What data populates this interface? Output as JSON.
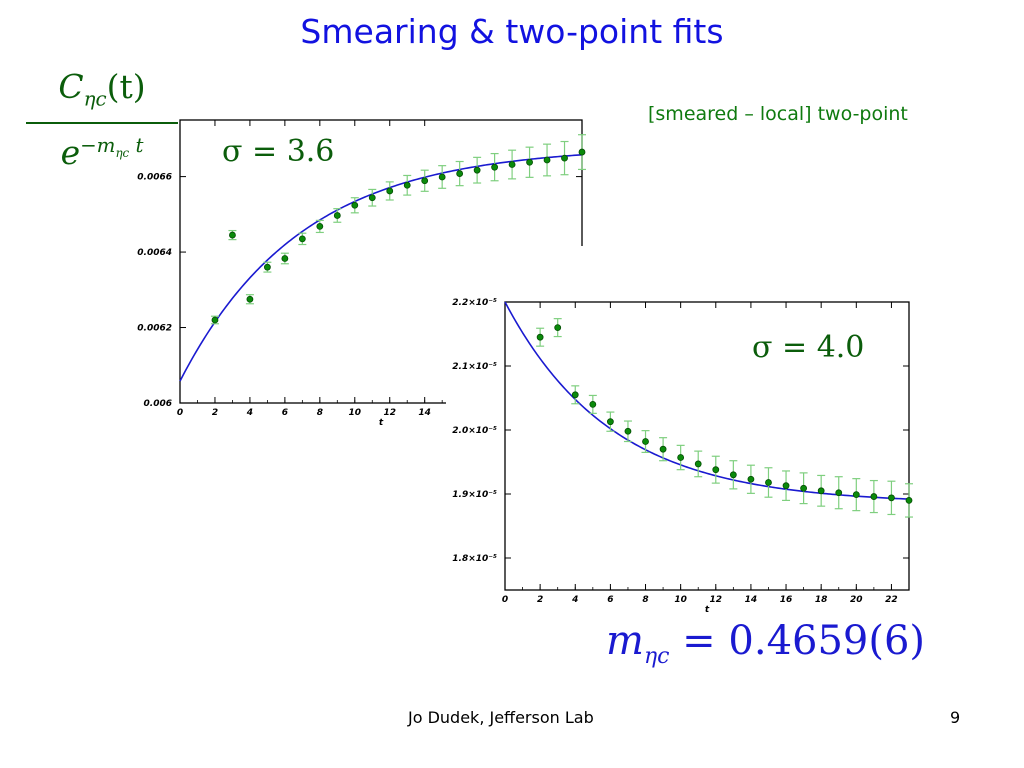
{
  "slide": {
    "title": "Smearing & two-point fits",
    "subtitle": "[smeared – local] two-point",
    "ratio_numerator": "C",
    "ratio_numerator_sub": "ηc",
    "ratio_numerator_arg": "(t)",
    "ratio_denominator": "e",
    "ratio_denominator_sup": "−m",
    "ratio_denominator_sup_sub": "ηc",
    "ratio_denominator_sup_t": "t",
    "mass_symbol": "m",
    "mass_sub": "ηc",
    "mass_value": "= 0.4659(6)",
    "footer_center": "Jo Dudek, Jefferson Lab",
    "page_number": "9"
  },
  "colors": {
    "title": "#1212e0",
    "points": "#0a8a0a",
    "error_bars": "#7fcf7f",
    "fit_curve": "#1a1ad0"
  },
  "chart_data": [
    {
      "type": "scatter",
      "sigma_label": "σ = 3.6",
      "xlabel": "t",
      "ylabel": "",
      "xlim": [
        0,
        23
      ],
      "ylim": [
        0.006,
        0.00675
      ],
      "xticks": [
        0,
        2,
        4,
        6,
        8,
        10,
        12,
        14
      ],
      "yticks": [
        0.006,
        0.0062,
        0.0064,
        0.0066
      ],
      "ytick_labels": [
        "0.006",
        "0.0062",
        "0.0064",
        "0.0066"
      ],
      "grid": false,
      "points": [
        {
          "x": 2,
          "y": 0.00622,
          "err": 1e-05
        },
        {
          "x": 3,
          "y": 0.006445,
          "err": 1.2e-05
        },
        {
          "x": 4,
          "y": 0.006275,
          "err": 1.2e-05
        },
        {
          "x": 5,
          "y": 0.00636,
          "err": 1.3e-05
        },
        {
          "x": 6,
          "y": 0.006383,
          "err": 1.4e-05
        },
        {
          "x": 7,
          "y": 0.006435,
          "err": 1.5e-05
        },
        {
          "x": 8,
          "y": 0.006468,
          "err": 1.6e-05
        },
        {
          "x": 9,
          "y": 0.006497,
          "err": 1.8e-05
        },
        {
          "x": 10,
          "y": 0.006524,
          "err": 2e-05
        },
        {
          "x": 11,
          "y": 0.006544,
          "err": 2.2e-05
        },
        {
          "x": 12,
          "y": 0.006562,
          "err": 2.4e-05
        },
        {
          "x": 13,
          "y": 0.006577,
          "err": 2.6e-05
        },
        {
          "x": 14,
          "y": 0.006589,
          "err": 2.8e-05
        },
        {
          "x": 15,
          "y": 0.006599,
          "err": 3e-05
        },
        {
          "x": 16,
          "y": 0.006608,
          "err": 3.2e-05
        },
        {
          "x": 17,
          "y": 0.006617,
          "err": 3.4e-05
        },
        {
          "x": 18,
          "y": 0.006625,
          "err": 3.6e-05
        },
        {
          "x": 19,
          "y": 0.006632,
          "err": 3.8e-05
        },
        {
          "x": 20,
          "y": 0.006638,
          "err": 4e-05
        },
        {
          "x": 21,
          "y": 0.006644,
          "err": 4.2e-05
        },
        {
          "x": 22,
          "y": 0.006649,
          "err": 4.4e-05
        },
        {
          "x": 23,
          "y": 0.006665,
          "err": 4.6e-05
        }
      ],
      "fit": {
        "A": 0.00668,
        "B": 0.000622,
        "k": 0.145
      }
    },
    {
      "type": "scatter",
      "sigma_label": "σ = 4.0",
      "xlabel": "t",
      "ylabel": "",
      "xlim": [
        0,
        23
      ],
      "ylim": [
        1.75e-05,
        2.2e-05
      ],
      "xticks": [
        0,
        2,
        4,
        6,
        8,
        10,
        12,
        14,
        16,
        18,
        20,
        22
      ],
      "yticks": [
        1.8e-05,
        1.9e-05,
        2e-05,
        2.1e-05,
        2.2e-05
      ],
      "ytick_labels": [
        "1.8×10⁻⁵",
        "1.9×10⁻⁵",
        "2.0×10⁻⁵",
        "2.1×10⁻⁵",
        "2.2×10⁻⁵"
      ],
      "grid": false,
      "points": [
        {
          "x": 2,
          "y": 2.145e-05,
          "err": 1.4e-07
        },
        {
          "x": 3,
          "y": 2.16e-05,
          "err": 1.4e-07
        },
        {
          "x": 4,
          "y": 2.055e-05,
          "err": 1.4e-07
        },
        {
          "x": 5,
          "y": 2.04e-05,
          "err": 1.4e-07
        },
        {
          "x": 6,
          "y": 2.013e-05,
          "err": 1.5e-07
        },
        {
          "x": 7,
          "y": 1.998e-05,
          "err": 1.6e-07
        },
        {
          "x": 8,
          "y": 1.982e-05,
          "err": 1.7e-07
        },
        {
          "x": 9,
          "y": 1.97e-05,
          "err": 1.8e-07
        },
        {
          "x": 10,
          "y": 1.957e-05,
          "err": 1.9e-07
        },
        {
          "x": 11,
          "y": 1.947e-05,
          "err": 2e-07
        },
        {
          "x": 12,
          "y": 1.938e-05,
          "err": 2.1e-07
        },
        {
          "x": 13,
          "y": 1.93e-05,
          "err": 2.2e-07
        },
        {
          "x": 14,
          "y": 1.923e-05,
          "err": 2.2e-07
        },
        {
          "x": 15,
          "y": 1.918e-05,
          "err": 2.3e-07
        },
        {
          "x": 16,
          "y": 1.913e-05,
          "err": 2.3e-07
        },
        {
          "x": 17,
          "y": 1.909e-05,
          "err": 2.4e-07
        },
        {
          "x": 18,
          "y": 1.905e-05,
          "err": 2.4e-07
        },
        {
          "x": 19,
          "y": 1.902e-05,
          "err": 2.5e-07
        },
        {
          "x": 20,
          "y": 1.899e-05,
          "err": 2.5e-07
        },
        {
          "x": 21,
          "y": 1.896e-05,
          "err": 2.5e-07
        },
        {
          "x": 22,
          "y": 1.894e-05,
          "err": 2.6e-07
        },
        {
          "x": 23,
          "y": 1.89e-05,
          "err": 2.6e-07
        }
      ],
      "fit": {
        "A": 1.885e-05,
        "B": 3.15e-06,
        "k": 0.165
      }
    }
  ]
}
